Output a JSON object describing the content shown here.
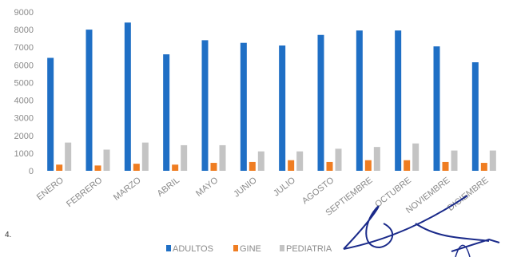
{
  "page_marker": "4.",
  "chart_data": {
    "type": "bar",
    "title": "",
    "xlabel": "",
    "ylabel": "",
    "ylim": [
      0,
      9000
    ],
    "yticks": [
      0,
      1000,
      2000,
      3000,
      4000,
      5000,
      6000,
      7000,
      8000,
      9000
    ],
    "grid": false,
    "legend_position": "bottom",
    "categories": [
      "ENERO",
      "FEBRERO",
      "MARZO",
      "ABRIL",
      "MAYO",
      "JUNIO",
      "JULIO",
      "AGOSTO",
      "SEPTIEMBRE",
      "OCTUBRE",
      "NOVIEMBRE",
      "DICIEMBRE"
    ],
    "series": [
      {
        "name": "ADULTOS",
        "color": "#1f6fc5",
        "values": [
          6400,
          8000,
          8400,
          6600,
          7400,
          7250,
          7100,
          7700,
          7950,
          7950,
          7050,
          6150
        ]
      },
      {
        "name": "GINE",
        "color": "#ef7d22",
        "values": [
          350,
          300,
          400,
          350,
          450,
          500,
          600,
          500,
          600,
          600,
          500,
          450
        ]
      },
      {
        "name": "PEDIATRIA",
        "color": "#c4c4c4",
        "values": [
          1600,
          1200,
          1600,
          1450,
          1450,
          1100,
          1100,
          1250,
          1350,
          1550,
          1150,
          1150
        ]
      }
    ]
  }
}
